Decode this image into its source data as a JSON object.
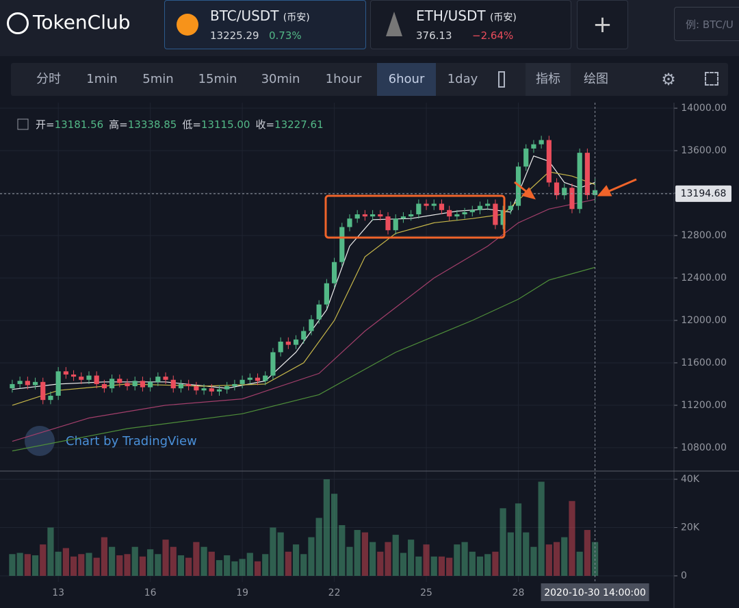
{
  "header": {
    "logo": "TokenClub",
    "tabs": [
      {
        "pair": "BTC/USDT",
        "exchange": "(币安)",
        "price": "13225.29",
        "change": "0.73%"
      },
      {
        "pair": "ETH/USDT",
        "exchange": "(币安)",
        "price": "376.13",
        "change": "−2.64%"
      }
    ],
    "add": "+",
    "search_placeholder": "例: BTC/U"
  },
  "toolbar": {
    "intervals": [
      "分时",
      "1min",
      "5min",
      "15min",
      "30min",
      "1hour",
      "6hour",
      "1day"
    ],
    "active_index": 6,
    "buttons": [
      "指标",
      "绘图"
    ]
  },
  "chart_data": {
    "type": "candlestick",
    "ohlc_legend": [
      {
        "label": "开=",
        "value": "13181.56"
      },
      {
        "label": "高=",
        "value": "13338.85"
      },
      {
        "label": "低=",
        "value": "13115.00"
      },
      {
        "label": "收=",
        "value": "13227.61"
      }
    ],
    "watermark": "Chart by TradingView",
    "up_color": "#53b987",
    "down_color": "#eb4d5c",
    "xlim": [
      -1.6,
      86.3
    ],
    "xticks": [
      {
        "value": 6,
        "label": "13"
      },
      {
        "value": 18,
        "label": "16"
      },
      {
        "value": 30,
        "label": "19"
      },
      {
        "value": 42,
        "label": "22"
      },
      {
        "value": 54,
        "label": "25"
      },
      {
        "value": 66,
        "label": "28"
      }
    ],
    "ylim": [
      10580,
      14052
    ],
    "yticks": [
      {
        "value": 14000,
        "label": "14000.00"
      },
      {
        "value": 13600,
        "label": "13600.00"
      },
      {
        "value": 13200,
        "label": "13200.00"
      },
      {
        "value": 12800,
        "label": "12800.00"
      },
      {
        "value": 12400,
        "label": "12400.00"
      },
      {
        "value": 12000,
        "label": "12000.00"
      },
      {
        "value": 11600,
        "label": "11600.00"
      },
      {
        "value": 11200,
        "label": "11200.00"
      },
      {
        "value": 10800,
        "label": "10800.00"
      }
    ],
    "volume_ylim": [
      -2550,
      42840
    ],
    "volume_yticks": [
      {
        "value": 40000,
        "label": "40K"
      },
      {
        "value": 20000,
        "label": "20K"
      },
      0
    ],
    "grid": true,
    "open": [
      11360,
      11400,
      11430,
      11390,
      11420,
      11250,
      11290,
      11520,
      11490,
      11470,
      11440,
      11480,
      11400,
      11360,
      11450,
      11410,
      11380,
      11430,
      11370,
      11420,
      11470,
      11440,
      11360,
      11400,
      11380,
      11340,
      11360,
      11330,
      11350,
      11380,
      11400,
      11440,
      11460,
      11430,
      11480,
      11700,
      11800,
      11770,
      11820,
      11900,
      12010,
      12150,
      12350,
      12550,
      12880,
      12960,
      13000,
      12980,
      13000,
      12980,
      12850,
      12960,
      12980,
      13000,
      13100,
      13080,
      13100,
      13040,
      12980,
      13000,
      13020,
      13040,
      13080,
      13100,
      12900,
      13040,
      13080,
      13450,
      13620,
      13660,
      13700,
      13300,
      13180,
      13250,
      13050,
      13580,
      13181.56
    ],
    "high": [
      11440,
      11470,
      11470,
      11460,
      11460,
      11330,
      11560,
      11560,
      11530,
      11510,
      11520,
      11520,
      11440,
      11490,
      11490,
      11450,
      11470,
      11470,
      11460,
      11510,
      11510,
      11480,
      11440,
      11440,
      11420,
      11400,
      11400,
      11390,
      11420,
      11440,
      11480,
      11500,
      11500,
      11520,
      11740,
      11840,
      11840,
      11860,
      11940,
      12050,
      12190,
      12390,
      12590,
      12920,
      13000,
      13040,
      13040,
      13040,
      13040,
      13020,
      13000,
      13020,
      13040,
      13140,
      13140,
      13140,
      13140,
      13080,
      13040,
      13060,
      13080,
      13120,
      13140,
      13140,
      13080,
      13120,
      13490,
      13660,
      13700,
      13740,
      13740,
      13340,
      13290,
      13290,
      13620,
      13620,
      13338.85
    ],
    "low": [
      11320,
      11360,
      11350,
      11350,
      11210,
      11210,
      11250,
      11450,
      11430,
      11400,
      11400,
      11360,
      11320,
      11320,
      11370,
      11340,
      11340,
      11330,
      11330,
      11380,
      11400,
      11320,
      11320,
      11340,
      11300,
      11300,
      11290,
      11290,
      11310,
      11340,
      11360,
      11400,
      11390,
      11390,
      11440,
      11660,
      11730,
      11730,
      11780,
      11860,
      11970,
      12110,
      12310,
      12510,
      12840,
      12920,
      12940,
      12940,
      12940,
      12810,
      12810,
      12920,
      12940,
      12960,
      13040,
      13040,
      13000,
      12940,
      12940,
      12960,
      12980,
      13000,
      13040,
      12860,
      12860,
      13000,
      13040,
      13410,
      13580,
      13620,
      13260,
      13140,
      13140,
      13010,
      13010,
      13140,
      13115
    ],
    "close": [
      11400,
      11430,
      11390,
      11420,
      11250,
      11290,
      11520,
      11490,
      11470,
      11440,
      11480,
      11400,
      11360,
      11450,
      11410,
      11380,
      11430,
      11370,
      11420,
      11470,
      11440,
      11360,
      11400,
      11380,
      11340,
      11360,
      11330,
      11350,
      11380,
      11400,
      11440,
      11460,
      11430,
      11480,
      11700,
      11800,
      11770,
      11820,
      11900,
      12010,
      12150,
      12350,
      12550,
      12880,
      12960,
      13000,
      12980,
      13000,
      12980,
      12850,
      12960,
      12980,
      13000,
      13100,
      13080,
      13100,
      13040,
      12980,
      13000,
      13020,
      13040,
      13080,
      13100,
      12900,
      13040,
      13080,
      13450,
      13620,
      13660,
      13700,
      13300,
      13180,
      13250,
      13050,
      13580,
      13181.56,
      13227.61
    ],
    "volume": [
      9000,
      9500,
      9000,
      8500,
      13000,
      20000,
      10000,
      11500,
      8000,
      9000,
      9500,
      7500,
      16000,
      12000,
      8500,
      9000,
      12000,
      8000,
      11000,
      9000,
      15000,
      12000,
      8500,
      7500,
      14000,
      12000,
      10000,
      6500,
      8500,
      6000,
      7000,
      9500,
      6000,
      9000,
      20000,
      18000,
      10000,
      13000,
      9000,
      16000,
      24000,
      40000,
      34000,
      21000,
      12000,
      19000,
      18000,
      14000,
      10000,
      14000,
      17000,
      9500,
      15000,
      8000,
      13000,
      8000,
      8000,
      7500,
      13000,
      14000,
      10000,
      8000,
      9000,
      10000,
      28000,
      18000,
      30000,
      18000,
      12000,
      39000,
      13000,
      14000,
      16000,
      31000,
      10000,
      19000,
      14000
    ],
    "moving_averages": [
      {
        "color": "#f0f0f0",
        "x": [
          0,
          6,
          12,
          20,
          28,
          33,
          37,
          41,
          44,
          47,
          52,
          58,
          62,
          65,
          68,
          70,
          72,
          74,
          76
        ],
        "values": [
          11350,
          11400,
          11420,
          11420,
          11360,
          11430,
          11700,
          12100,
          12700,
          12950,
          12960,
          13030,
          13050,
          13020,
          13550,
          13500,
          13300,
          13250,
          13300
        ]
      },
      {
        "color": "#c8b84a",
        "x": [
          0,
          6,
          15,
          25,
          33,
          38,
          42,
          46,
          50,
          55,
          60,
          64,
          67,
          70,
          73,
          76
        ],
        "values": [
          11200,
          11340,
          11400,
          11380,
          11400,
          11600,
          12000,
          12600,
          12820,
          12920,
          12960,
          13000,
          13200,
          13400,
          13360,
          13280
        ]
      },
      {
        "color": "#a33f6b",
        "x": [
          0,
          10,
          20,
          30,
          40,
          46,
          55,
          62,
          66,
          70,
          76
        ],
        "values": [
          10860,
          11080,
          11200,
          11260,
          11500,
          11900,
          12400,
          12700,
          12920,
          13050,
          13140
        ]
      },
      {
        "color": "#4f8f3a",
        "x": [
          0,
          15,
          30,
          40,
          50,
          60,
          66,
          70,
          76
        ],
        "values": [
          10770,
          10980,
          11120,
          11300,
          11700,
          12000,
          12200,
          12380,
          12500
        ]
      }
    ],
    "last_price": 13194.68,
    "crosshair": {
      "x": 76,
      "label": "2020-10-30 14:00:00"
    }
  }
}
